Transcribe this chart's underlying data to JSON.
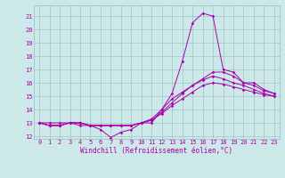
{
  "xlabel": "Windchill (Refroidissement éolien,°C)",
  "background_color": "#cce8e8",
  "line_color": "#aa00aa",
  "grid_color": "#99bbbb",
  "xlim": [
    -0.5,
    23.5
  ],
  "ylim": [
    11.8,
    21.8
  ],
  "xticks": [
    0,
    1,
    2,
    3,
    4,
    5,
    6,
    7,
    8,
    9,
    10,
    11,
    12,
    13,
    14,
    15,
    16,
    17,
    18,
    19,
    20,
    21,
    22,
    23
  ],
  "yticks": [
    12,
    13,
    14,
    15,
    16,
    17,
    18,
    19,
    20,
    21
  ],
  "series": [
    [
      13.0,
      13.0,
      13.0,
      13.0,
      12.8,
      12.8,
      12.5,
      11.9,
      12.3,
      12.5,
      13.0,
      13.0,
      14.0,
      15.2,
      17.6,
      20.5,
      21.2,
      21.0,
      17.0,
      16.8,
      16.0,
      16.0,
      15.5,
      15.2
    ],
    [
      13.0,
      12.8,
      12.8,
      13.0,
      13.0,
      12.8,
      12.8,
      12.8,
      12.8,
      12.8,
      13.0,
      13.2,
      13.8,
      14.5,
      15.2,
      15.8,
      16.3,
      16.8,
      16.8,
      16.5,
      16.0,
      15.8,
      15.4,
      15.2
    ],
    [
      13.0,
      12.8,
      12.8,
      13.0,
      13.0,
      12.8,
      12.8,
      12.8,
      12.8,
      12.8,
      13.0,
      13.3,
      14.0,
      14.8,
      15.3,
      15.8,
      16.2,
      16.5,
      16.3,
      16.0,
      15.8,
      15.5,
      15.2,
      15.0
    ],
    [
      13.0,
      12.8,
      12.8,
      13.0,
      13.0,
      12.8,
      12.8,
      12.8,
      12.8,
      12.8,
      13.0,
      13.2,
      13.7,
      14.3,
      14.8,
      15.3,
      15.8,
      16.0,
      15.9,
      15.7,
      15.5,
      15.3,
      15.1,
      15.0
    ]
  ],
  "tick_fontsize": 5,
  "xlabel_fontsize": 5.5
}
